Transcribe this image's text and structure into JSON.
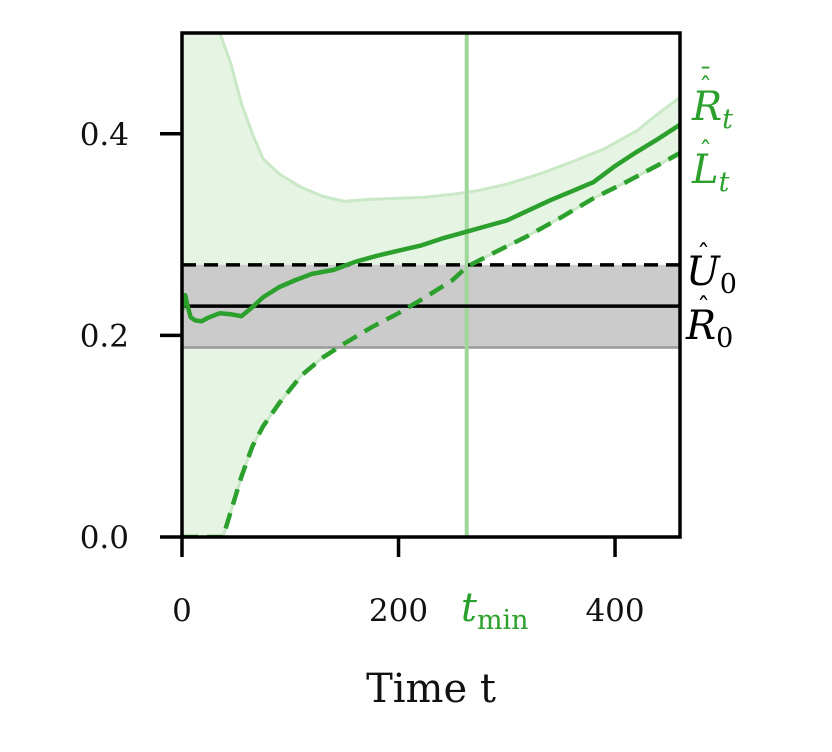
{
  "chart_data": {
    "type": "line",
    "xlabel": "Time t",
    "xlim": [
      0,
      460
    ],
    "ylim": [
      0.0,
      0.5
    ],
    "xticks": [
      {
        "value": 0,
        "label": "0"
      },
      {
        "value": 200,
        "label": "200"
      },
      {
        "value": 400,
        "label": "400"
      }
    ],
    "yticks": [
      {
        "value": 0.0,
        "label": "0.0"
      },
      {
        "value": 0.2,
        "label": "0.2"
      },
      {
        "value": 0.4,
        "label": "0.4"
      }
    ],
    "grid": false,
    "colors": {
      "green": "#2ca02c",
      "band_green": "#e6f4e4",
      "band_green_edge": "#c9e8c6",
      "tmin_line": "#9fd79a",
      "black": "#000000",
      "gray_band": "#c8c8c8",
      "gray_edge": "#9a9a9a"
    },
    "series": [
      {
        "label_main": "R",
        "label_sub": "t",
        "style": "solid",
        "color": "#2ca02c",
        "x": [
          0,
          3,
          5,
          8,
          12,
          18,
          25,
          35,
          45,
          55,
          65,
          75,
          90,
          105,
          120,
          140,
          160,
          180,
          200,
          220,
          240,
          260,
          280,
          300,
          320,
          340,
          360,
          380,
          400,
          420,
          440,
          460
        ],
        "y": [
          0.225,
          0.24,
          0.23,
          0.218,
          0.215,
          0.214,
          0.218,
          0.222,
          0.221,
          0.219,
          0.228,
          0.238,
          0.248,
          0.255,
          0.261,
          0.265,
          0.273,
          0.279,
          0.284,
          0.289,
          0.296,
          0.302,
          0.308,
          0.314,
          0.324,
          0.334,
          0.343,
          0.352,
          0.368,
          0.382,
          0.395,
          0.409
        ]
      },
      {
        "label_main": "L",
        "label_sub": "t",
        "style": "dashed",
        "color": "#2ca02c",
        "x": [
          0,
          38,
          45,
          55,
          65,
          75,
          90,
          110,
          130,
          150,
          175,
          200,
          225,
          250,
          263,
          290,
          320,
          350,
          380,
          410,
          440,
          460
        ],
        "y": [
          0.0,
          0.0,
          0.025,
          0.06,
          0.09,
          0.11,
          0.133,
          0.16,
          0.178,
          0.192,
          0.208,
          0.222,
          0.238,
          0.255,
          0.268,
          0.283,
          0.299,
          0.317,
          0.336,
          0.352,
          0.369,
          0.381
        ]
      }
    ],
    "band_green": {
      "x": [
        0,
        35,
        45,
        55,
        65,
        75,
        90,
        110,
        130,
        150,
        175,
        200,
        225,
        250,
        275,
        300,
        330,
        360,
        390,
        420,
        440,
        460
      ],
      "upper": [
        0.5,
        0.5,
        0.47,
        0.43,
        0.4,
        0.375,
        0.36,
        0.347,
        0.338,
        0.333,
        0.335,
        0.336,
        0.337,
        0.34,
        0.344,
        0.35,
        0.36,
        0.372,
        0.385,
        0.403,
        0.42,
        0.436
      ],
      "lower_note": "lower edge follows the dashed series"
    },
    "hlines": [
      {
        "label_main": "U",
        "label_sub": "0",
        "y": 0.27,
        "style": "dashed",
        "color": "#000000"
      },
      {
        "label_main": "R",
        "label_sub": "0",
        "y": 0.229,
        "style": "solid",
        "color": "#000000"
      }
    ],
    "gray_band": {
      "lower": 0.188,
      "upper": 0.27
    },
    "vline": {
      "x": 263,
      "label_main": "t",
      "label_sub": "min",
      "color": "#2ca02c"
    }
  }
}
